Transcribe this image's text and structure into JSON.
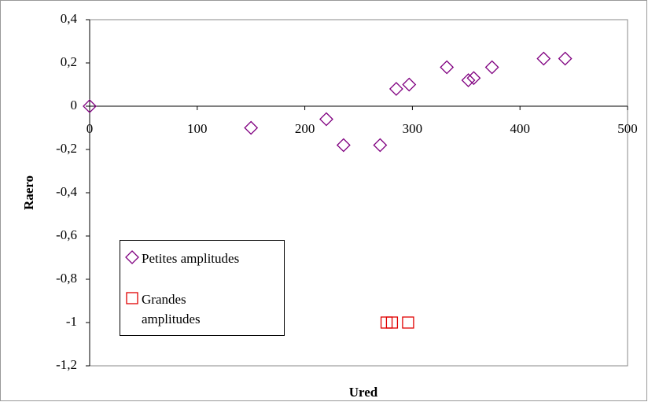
{
  "chart_data": {
    "type": "scatter",
    "x_label": "Ured",
    "y_label": "Raero",
    "xlim": [
      0,
      500
    ],
    "xticks": [
      0,
      100,
      200,
      300,
      400,
      500
    ],
    "ylim": [
      -1.2,
      0.4
    ],
    "yticks": [
      {
        "value": 0.4,
        "label": "0,4"
      },
      {
        "value": 0.2,
        "label": "0,2"
      },
      {
        "value": 0,
        "label": "0"
      },
      {
        "value": -0.2,
        "label": "-0,2"
      },
      {
        "value": -0.4,
        "label": "-0,4"
      },
      {
        "value": -0.6,
        "label": "-0,6"
      },
      {
        "value": -0.8,
        "label": "-0,8"
      },
      {
        "value": -1,
        "label": "-1"
      },
      {
        "value": -1.2,
        "label": "-1,2"
      }
    ],
    "series": [
      {
        "name": "Petites amplitudes",
        "color": "#800080",
        "marker": "diamond",
        "x": [
          0,
          150,
          220,
          236,
          270,
          285,
          297,
          332,
          352,
          357,
          374,
          422,
          442
        ],
        "values": [
          0,
          -0.1,
          -0.06,
          -0.18,
          -0.18,
          0.08,
          0.1,
          0.18,
          0.12,
          0.13,
          0.18,
          0.22,
          0.22
        ]
      },
      {
        "name": "Grandes amplitudes",
        "color": "#e00000",
        "marker": "square",
        "x": [
          276,
          281,
          296
        ],
        "values": [
          -1,
          -1,
          -1
        ]
      }
    ]
  }
}
